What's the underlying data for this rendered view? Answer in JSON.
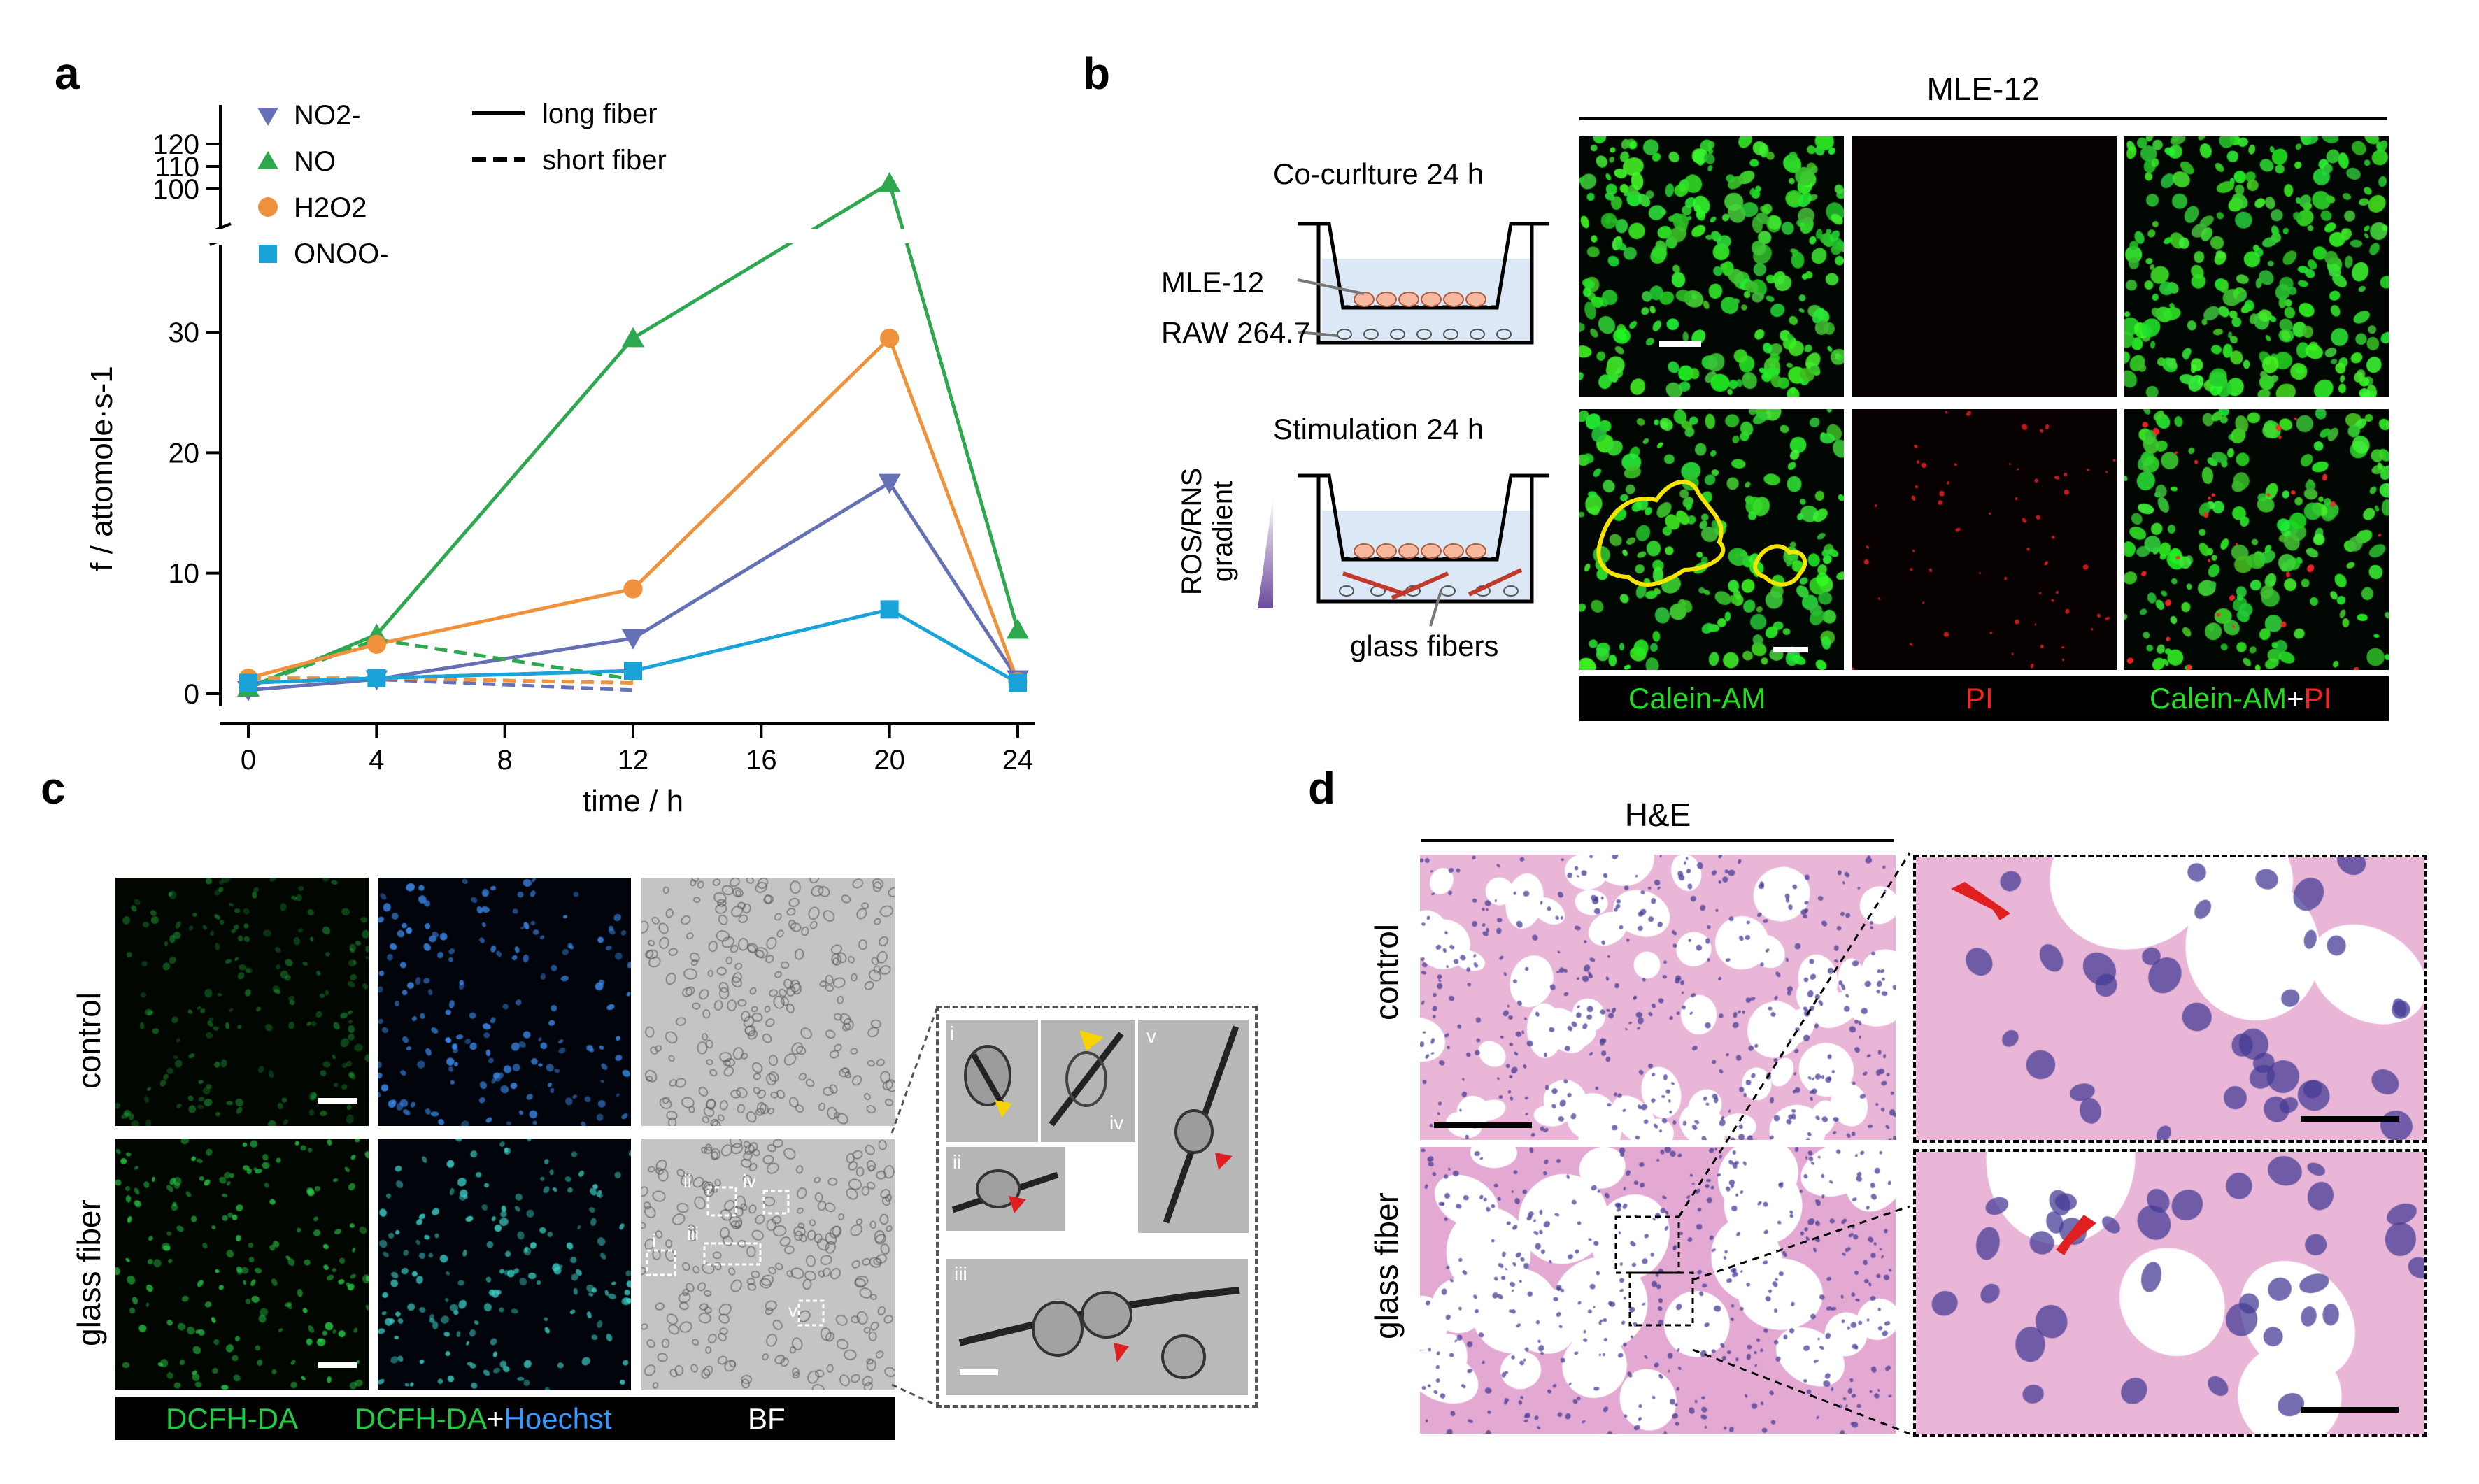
{
  "panels": {
    "a": "a",
    "b": "b",
    "c": "c",
    "d": "d"
  },
  "chart_data": {
    "type": "line",
    "xlabel": "time / h",
    "ylabel": "f / attomole·s-1",
    "x_ticks": [
      "0",
      "4",
      "8",
      "12",
      "16",
      "20",
      "24"
    ],
    "y_ticks_low": [
      "0",
      "10",
      "20",
      "30"
    ],
    "y_ticks_high": [
      "100",
      "110",
      "120"
    ],
    "xlim": [
      0,
      24
    ],
    "ylim_low": [
      0,
      33
    ],
    "ylim_high": [
      95,
      120
    ],
    "axis_break": true,
    "legend_species": [
      "NO2-",
      "NO",
      "H2O2",
      "ONOO-"
    ],
    "legend_styles": [
      "long fiber",
      "short fiber"
    ],
    "series": [
      {
        "name": "NO2-",
        "color": "#6670b4",
        "marker": "triangle-down",
        "long": {
          "x": [
            0,
            4,
            12,
            20,
            24
          ],
          "y": [
            0.3,
            1.2,
            4.6,
            17.5,
            1.2
          ]
        },
        "short": {
          "x": [
            0,
            4,
            12
          ],
          "y": [
            0.3,
            1.2,
            0.3
          ]
        }
      },
      {
        "name": "NO",
        "color": "#2ea84f",
        "marker": "triangle-up",
        "long": {
          "x": [
            0,
            4,
            12,
            20,
            24
          ],
          "y": [
            0.5,
            4.9,
            29.5,
            102.5,
            5.3
          ]
        },
        "short": {
          "x": [
            0,
            4,
            12
          ],
          "y": [
            0.5,
            4.5,
            1.2
          ]
        }
      },
      {
        "name": "H2O2",
        "color": "#f0923b",
        "marker": "circle",
        "long": {
          "x": [
            0,
            4,
            12,
            20,
            24
          ],
          "y": [
            1.3,
            4.1,
            8.7,
            29.5,
            1.0
          ]
        },
        "short": {
          "x": [
            0,
            4,
            12
          ],
          "y": [
            1.3,
            1.3,
            0.9
          ]
        }
      },
      {
        "name": "ONOO-",
        "color": "#1aa3d9",
        "marker": "square",
        "long": {
          "x": [
            0,
            4,
            12,
            20,
            24
          ],
          "y": [
            0.9,
            1.3,
            1.9,
            7.0,
            0.9
          ]
        },
        "short": {
          "x": [
            0,
            4,
            12
          ],
          "y": [
            0.9,
            1.3,
            1.9
          ]
        }
      }
    ]
  },
  "b": {
    "title": "MLE-12",
    "coculture": "Co-curlture 24 h",
    "stimulation": "Stimulation 24 h",
    "mle12": "MLE-12",
    "raw": "RAW 264.7",
    "gradient_1": "ROS/RNS",
    "gradient_2": "gradient",
    "glass_fibers": "glass fibers",
    "stain_calcein": "Calein-AM",
    "stain_pi": "PI",
    "stain_merge_a": "Calein-AM",
    "stain_merge_plus": "+",
    "stain_merge_b": "PI",
    "colors": {
      "calcein": "#22dd22",
      "pi": "#ff2222",
      "outline": "#f5e400"
    }
  },
  "c": {
    "row_control": "control",
    "row_glass": "glass fiber",
    "label_dcfh": "DCFH-DA",
    "label_merge_a": "DCFH-DA",
    "label_merge_plus": "+",
    "label_merge_b": "Hoechst",
    "label_bf": "BF",
    "insets": [
      "i",
      "ii",
      "iii",
      "iv",
      "v"
    ],
    "roi": [
      "i",
      "ii",
      "iii",
      "iv",
      "v"
    ],
    "colors": {
      "dcfh": "#22cc44",
      "hoechst": "#3399ff"
    }
  },
  "d": {
    "title": "H&E",
    "row_control": "control",
    "row_glass": "glass fiber"
  }
}
